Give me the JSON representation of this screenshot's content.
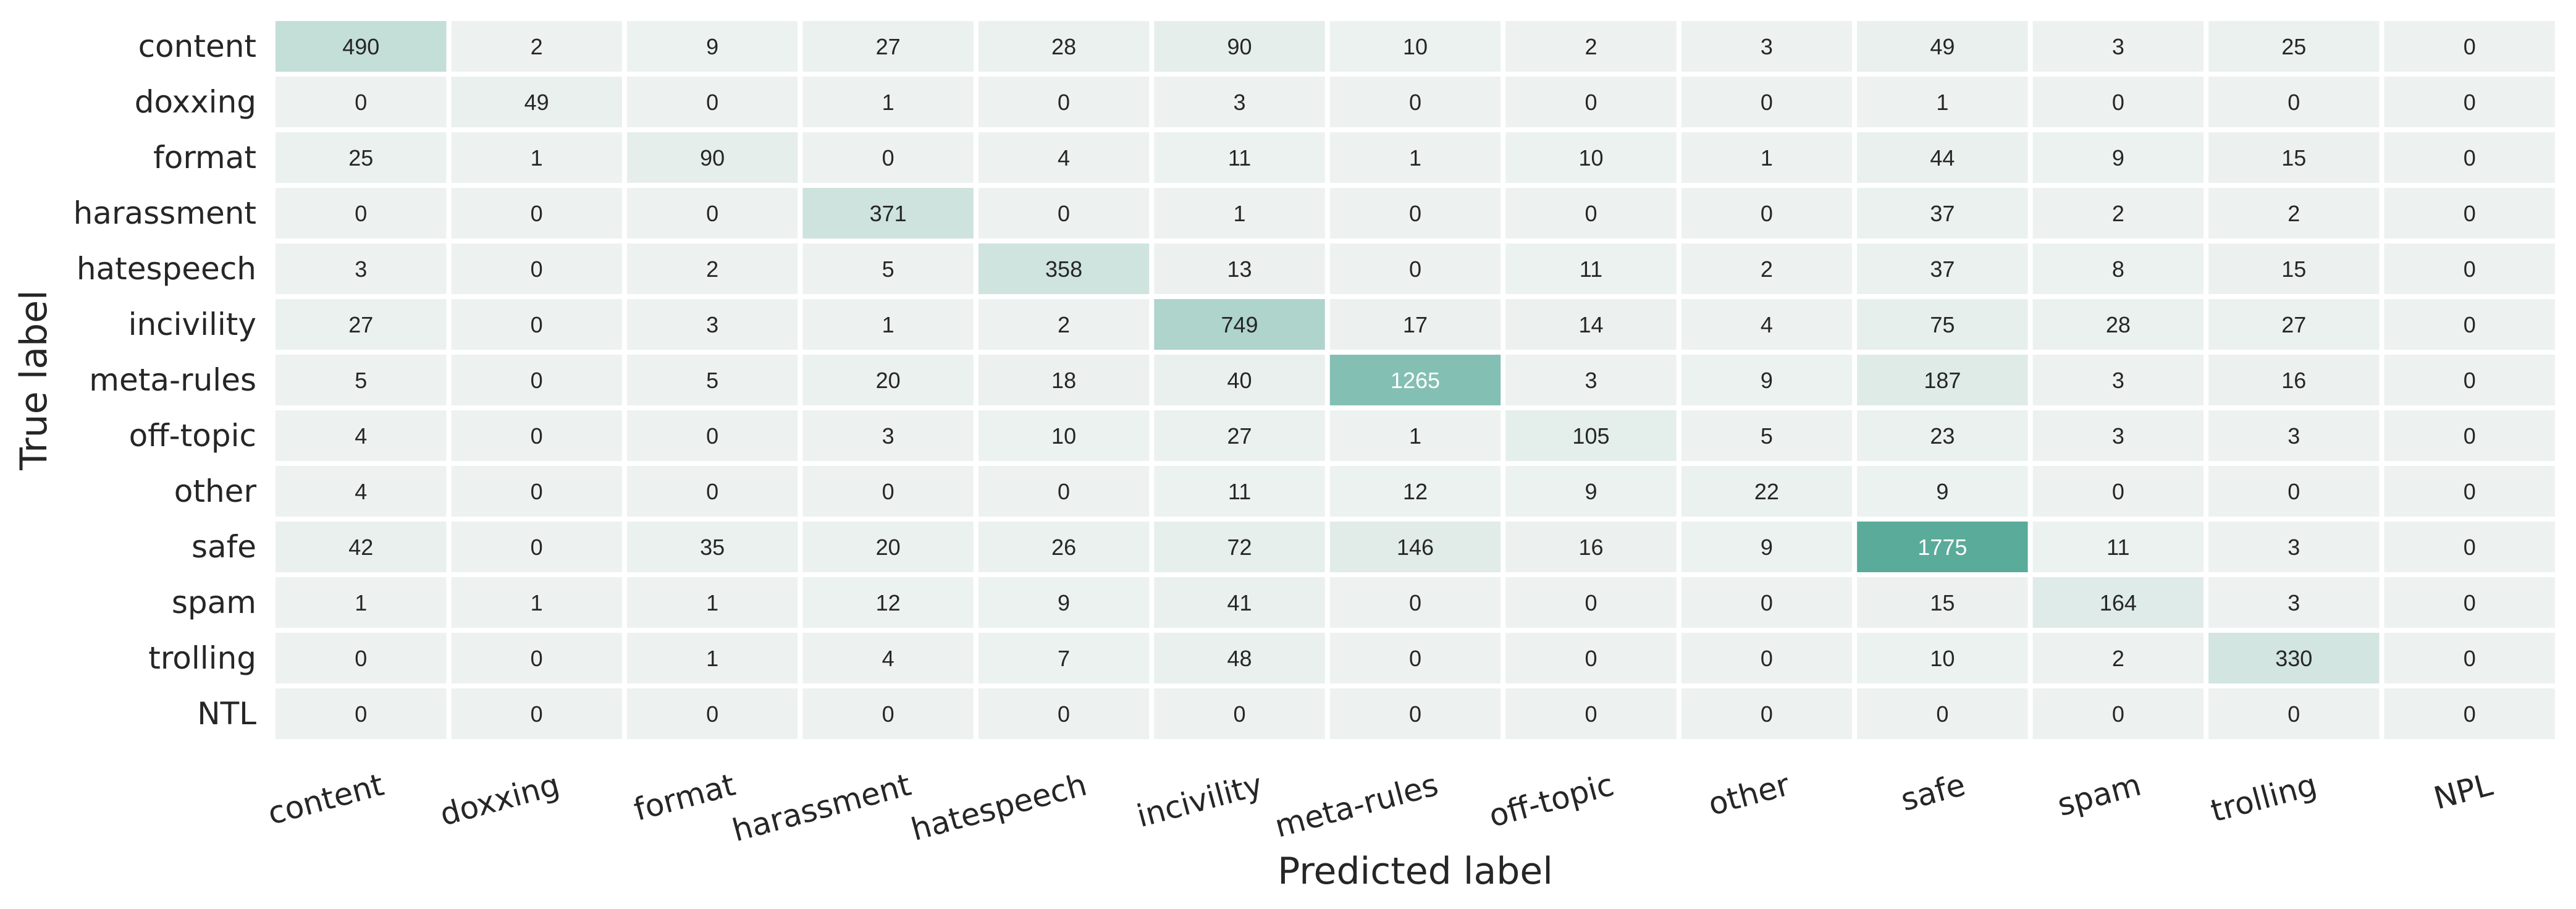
{
  "chart_data": {
    "type": "heatmap",
    "xlabel": "Predicted label",
    "ylabel": "True label",
    "x_categories": [
      "content",
      "doxxing",
      "format",
      "harassment",
      "hatespeech",
      "incivility",
      "meta-rules",
      "off-topic",
      "other",
      "safe",
      "spam",
      "trolling",
      "NPL"
    ],
    "y_categories": [
      "content",
      "doxxing",
      "format",
      "harassment",
      "hatespeech",
      "incivility",
      "meta-rules",
      "off-topic",
      "other",
      "safe",
      "spam",
      "trolling",
      "NTL"
    ],
    "values": [
      [
        490,
        2,
        9,
        27,
        28,
        90,
        10,
        2,
        3,
        49,
        3,
        25,
        0
      ],
      [
        0,
        49,
        0,
        1,
        0,
        3,
        0,
        0,
        0,
        1,
        0,
        0,
        0
      ],
      [
        25,
        1,
        90,
        0,
        4,
        11,
        1,
        10,
        1,
        44,
        9,
        15,
        0
      ],
      [
        0,
        0,
        0,
        371,
        0,
        1,
        0,
        0,
        0,
        37,
        2,
        2,
        0
      ],
      [
        3,
        0,
        2,
        5,
        358,
        13,
        0,
        11,
        2,
        37,
        8,
        15,
        0
      ],
      [
        27,
        0,
        3,
        1,
        2,
        749,
        17,
        14,
        4,
        75,
        28,
        27,
        0
      ],
      [
        5,
        0,
        5,
        20,
        18,
        40,
        1265,
        3,
        9,
        187,
        3,
        16,
        0
      ],
      [
        4,
        0,
        0,
        3,
        10,
        27,
        1,
        105,
        5,
        23,
        3,
        3,
        0
      ],
      [
        4,
        0,
        0,
        0,
        0,
        11,
        12,
        9,
        22,
        9,
        0,
        0,
        0
      ],
      [
        42,
        0,
        35,
        20,
        26,
        72,
        146,
        16,
        9,
        1775,
        11,
        3,
        0
      ],
      [
        1,
        1,
        1,
        12,
        9,
        41,
        0,
        0,
        0,
        15,
        164,
        3,
        0
      ],
      [
        0,
        0,
        1,
        4,
        7,
        48,
        0,
        0,
        0,
        10,
        2,
        330,
        0
      ],
      [
        0,
        0,
        0,
        0,
        0,
        0,
        0,
        0,
        0,
        0,
        0,
        0,
        0
      ]
    ],
    "colorscale": {
      "low": "#edf2f0",
      "high": "#5aab9a"
    },
    "annotation_colors": {
      "dark": "#262626",
      "light": "#ffffff"
    },
    "colorbar": false,
    "grid": false
  }
}
